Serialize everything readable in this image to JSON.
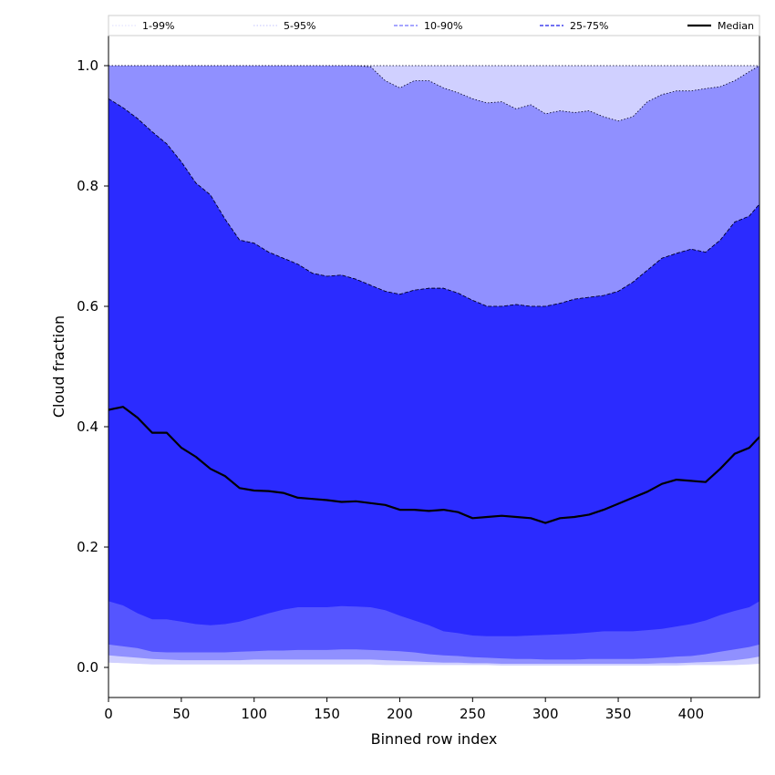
{
  "chart_data": {
    "type": "area",
    "title": "",
    "xlabel": "Binned row index",
    "ylabel": "Cloud fraction",
    "xlim": [
      0,
      447
    ],
    "ylim": [
      -0.05,
      1.05
    ],
    "xticks": [
      0,
      50,
      100,
      150,
      200,
      250,
      300,
      350,
      400
    ],
    "yticks": [
      0.0,
      0.2,
      0.4,
      0.6,
      0.8,
      1.0
    ],
    "xtick_labels": [
      "0",
      "50",
      "100",
      "150",
      "200",
      "250",
      "300",
      "350",
      "400"
    ],
    "ytick_labels": [
      "0.0",
      "0.2",
      "0.4",
      "0.6",
      "0.8",
      "1.0"
    ],
    "legend_position": "top (single row above plot)",
    "grid": false,
    "x": [
      0,
      10,
      20,
      30,
      40,
      50,
      60,
      70,
      80,
      90,
      100,
      110,
      120,
      130,
      140,
      150,
      160,
      170,
      180,
      190,
      200,
      210,
      220,
      230,
      240,
      250,
      260,
      270,
      280,
      290,
      300,
      310,
      320,
      330,
      340,
      350,
      360,
      370,
      380,
      390,
      400,
      410,
      420,
      430,
      440,
      447
    ],
    "series": [
      {
        "name": "1-99%",
        "color": "#d0d0ff",
        "style": "dotted",
        "lower": [
          0.008,
          0.007,
          0.006,
          0.005,
          0.005,
          0.005,
          0.005,
          0.005,
          0.005,
          0.005,
          0.005,
          0.005,
          0.005,
          0.005,
          0.005,
          0.005,
          0.005,
          0.005,
          0.005,
          0.004,
          0.004,
          0.004,
          0.004,
          0.004,
          0.004,
          0.004,
          0.004,
          0.003,
          0.003,
          0.003,
          0.003,
          0.003,
          0.003,
          0.003,
          0.003,
          0.003,
          0.003,
          0.003,
          0.003,
          0.003,
          0.004,
          0.004,
          0.004,
          0.004,
          0.005,
          0.006
        ],
        "upper": [
          1.0,
          1.0,
          1.0,
          1.0,
          1.0,
          1.0,
          1.0,
          1.0,
          1.0,
          1.0,
          1.0,
          1.0,
          1.0,
          1.0,
          1.0,
          1.0,
          1.0,
          1.0,
          1.0,
          1.0,
          1.0,
          1.0,
          1.0,
          1.0,
          1.0,
          1.0,
          1.0,
          1.0,
          1.0,
          1.0,
          1.0,
          1.0,
          1.0,
          1.0,
          1.0,
          1.0,
          1.0,
          1.0,
          1.0,
          1.0,
          1.0,
          1.0,
          1.0,
          1.0,
          1.0,
          1.0
        ]
      },
      {
        "name": "5-95%",
        "color": "#9090ff",
        "style": "dotted",
        "lower": [
          0.02,
          0.018,
          0.016,
          0.014,
          0.013,
          0.012,
          0.012,
          0.012,
          0.012,
          0.012,
          0.013,
          0.013,
          0.013,
          0.013,
          0.013,
          0.013,
          0.013,
          0.013,
          0.013,
          0.012,
          0.011,
          0.01,
          0.009,
          0.008,
          0.008,
          0.007,
          0.007,
          0.006,
          0.006,
          0.006,
          0.006,
          0.006,
          0.006,
          0.006,
          0.006,
          0.006,
          0.006,
          0.006,
          0.007,
          0.007,
          0.008,
          0.009,
          0.01,
          0.012,
          0.015,
          0.018
        ],
        "upper": [
          1.0,
          1.0,
          1.0,
          1.0,
          1.0,
          1.0,
          1.0,
          1.0,
          1.0,
          1.0,
          1.0,
          1.0,
          1.0,
          1.0,
          1.0,
          1.0,
          1.0,
          1.0,
          0.998,
          0.975,
          0.963,
          0.975,
          0.975,
          0.963,
          0.955,
          0.945,
          0.938,
          0.94,
          0.928,
          0.935,
          0.92,
          0.925,
          0.922,
          0.925,
          0.915,
          0.908,
          0.915,
          0.94,
          0.952,
          0.958,
          0.958,
          0.962,
          0.965,
          0.975,
          0.99,
          1.0
        ]
      },
      {
        "name": "10-90%",
        "color": "#5555ff",
        "style": "dashed",
        "lower": [
          0.038,
          0.035,
          0.032,
          0.026,
          0.025,
          0.025,
          0.025,
          0.025,
          0.025,
          0.026,
          0.027,
          0.028,
          0.028,
          0.029,
          0.029,
          0.029,
          0.03,
          0.03,
          0.029,
          0.028,
          0.027,
          0.025,
          0.022,
          0.02,
          0.019,
          0.017,
          0.016,
          0.015,
          0.014,
          0.014,
          0.013,
          0.013,
          0.013,
          0.014,
          0.014,
          0.014,
          0.014,
          0.015,
          0.016,
          0.018,
          0.019,
          0.022,
          0.026,
          0.03,
          0.034,
          0.038
        ],
        "upper": [
          0.945,
          0.93,
          0.912,
          0.89,
          0.87,
          0.84,
          0.805,
          0.785,
          0.745,
          0.71,
          0.705,
          0.69,
          0.68,
          0.67,
          0.655,
          0.65,
          0.652,
          0.645,
          0.635,
          0.625,
          0.62,
          0.627,
          0.63,
          0.63,
          0.622,
          0.61,
          0.6,
          0.6,
          0.603,
          0.6,
          0.6,
          0.605,
          0.612,
          0.615,
          0.618,
          0.625,
          0.64,
          0.66,
          0.68,
          0.688,
          0.695,
          0.69,
          0.71,
          0.74,
          0.75,
          0.77
        ]
      },
      {
        "name": "25-75%",
        "color": "#2b2bff",
        "style": "dashed",
        "lower": [
          0.11,
          0.103,
          0.09,
          0.08,
          0.08,
          0.076,
          0.072,
          0.07,
          0.072,
          0.076,
          0.083,
          0.09,
          0.096,
          0.1,
          0.1,
          0.1,
          0.102,
          0.101,
          0.1,
          0.095,
          0.086,
          0.078,
          0.07,
          0.06,
          0.057,
          0.053,
          0.052,
          0.052,
          0.052,
          0.053,
          0.054,
          0.055,
          0.056,
          0.058,
          0.06,
          0.06,
          0.06,
          0.062,
          0.064,
          0.068,
          0.072,
          0.078,
          0.087,
          0.094,
          0.1,
          0.11
        ],
        "upper": [
          0.945,
          0.93,
          0.912,
          0.89,
          0.87,
          0.84,
          0.805,
          0.785,
          0.745,
          0.71,
          0.705,
          0.69,
          0.68,
          0.67,
          0.655,
          0.65,
          0.652,
          0.645,
          0.635,
          0.625,
          0.62,
          0.627,
          0.63,
          0.63,
          0.622,
          0.61,
          0.6,
          0.6,
          0.603,
          0.6,
          0.6,
          0.605,
          0.612,
          0.615,
          0.618,
          0.625,
          0.64,
          0.66,
          0.68,
          0.688,
          0.695,
          0.69,
          0.71,
          0.74,
          0.75,
          0.77
        ]
      },
      {
        "name": "Median",
        "color": "#000000",
        "style": "solid",
        "values": [
          0.428,
          0.433,
          0.415,
          0.39,
          0.39,
          0.365,
          0.35,
          0.33,
          0.318,
          0.298,
          0.294,
          0.293,
          0.29,
          0.282,
          0.28,
          0.278,
          0.275,
          0.276,
          0.273,
          0.27,
          0.262,
          0.262,
          0.26,
          0.262,
          0.258,
          0.248,
          0.25,
          0.252,
          0.25,
          0.248,
          0.24,
          0.248,
          0.25,
          0.254,
          0.262,
          0.272,
          0.282,
          0.292,
          0.305,
          0.312,
          0.31,
          0.308,
          0.33,
          0.355,
          0.365,
          0.383
        ]
      }
    ],
    "band_fill_colors": {
      "outer": "#d0d0ff",
      "p5_p95": "#9090ff",
      "p10_p90": "#5555ff",
      "p25_p75": "#2b2bff"
    }
  }
}
